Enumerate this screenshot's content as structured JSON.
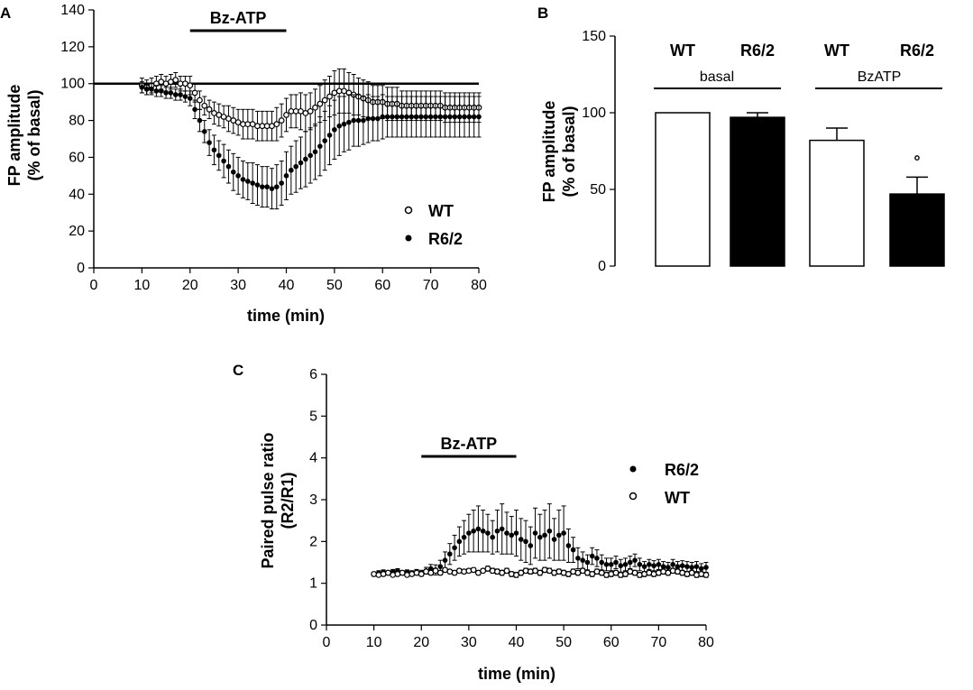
{
  "chart_data": [
    {
      "panel": "A",
      "type": "scatter",
      "xlabel": "time (min)",
      "ylabel_line1": "FP amplitude",
      "ylabel_line2": "(% of basal)",
      "xlim": [
        0,
        80
      ],
      "ylim": [
        0,
        140
      ],
      "x_ticks": [
        "0",
        "10",
        "20",
        "30",
        "40",
        "50",
        "60",
        "70",
        "80"
      ],
      "y_ticks": [
        "0",
        "20",
        "40",
        "60",
        "80",
        "100",
        "120",
        "140"
      ],
      "reference_line": 100,
      "annotation": {
        "label": "Bz-ATP",
        "from": 20,
        "to": 40
      },
      "legend": [
        {
          "name": "WT",
          "marker": "open"
        },
        {
          "name": "R6/2",
          "marker": "filled"
        }
      ],
      "series": [
        {
          "name": "WT",
          "marker": "open",
          "x": [
            10,
            11,
            12,
            13,
            14,
            15,
            16,
            17,
            18,
            19,
            20,
            21,
            22,
            23,
            24,
            25,
            26,
            27,
            28,
            29,
            30,
            31,
            32,
            33,
            34,
            35,
            36,
            37,
            38,
            39,
            40,
            41,
            42,
            43,
            44,
            45,
            46,
            47,
            48,
            49,
            50,
            51,
            52,
            53,
            54,
            55,
            56,
            57,
            58,
            59,
            60,
            61,
            62,
            63,
            64,
            65,
            66,
            67,
            68,
            69,
            70,
            71,
            72,
            73,
            74,
            75,
            76,
            77,
            78,
            79,
            80
          ],
          "y": [
            99,
            98,
            99,
            100,
            101,
            100,
            101,
            102,
            100,
            100,
            99,
            95,
            91,
            88,
            86,
            84,
            83,
            82,
            81,
            80,
            79,
            78,
            78,
            78,
            77,
            77,
            77,
            77,
            78,
            80,
            83,
            85,
            85,
            85,
            84,
            85,
            87,
            89,
            91,
            93,
            95,
            96,
            96,
            95,
            94,
            93,
            92,
            91,
            90,
            90,
            90,
            89,
            89,
            89,
            88,
            88,
            88,
            88,
            88,
            88,
            88,
            88,
            88,
            87,
            87,
            87,
            87,
            87,
            87,
            87,
            87
          ],
          "err": [
            4,
            4,
            4,
            4,
            4,
            4,
            4,
            4,
            4,
            4,
            5,
            5,
            5,
            5,
            5,
            6,
            6,
            6,
            7,
            7,
            7,
            8,
            8,
            8,
            8,
            8,
            8,
            8,
            9,
            9,
            9,
            9,
            9,
            10,
            10,
            10,
            10,
            10,
            11,
            11,
            12,
            12,
            12,
            11,
            11,
            10,
            10,
            10,
            9,
            9,
            9,
            9,
            9,
            9,
            8,
            8,
            8,
            8,
            8,
            8,
            8,
            8,
            8,
            8,
            8,
            8,
            8,
            8,
            8,
            8,
            8
          ]
        },
        {
          "name": "R6/2",
          "marker": "filled",
          "x": [
            10,
            11,
            12,
            13,
            14,
            15,
            16,
            17,
            18,
            19,
            20,
            21,
            22,
            23,
            24,
            25,
            26,
            27,
            28,
            29,
            30,
            31,
            32,
            33,
            34,
            35,
            36,
            37,
            38,
            39,
            40,
            41,
            42,
            43,
            44,
            45,
            46,
            47,
            48,
            49,
            50,
            51,
            52,
            53,
            54,
            55,
            56,
            57,
            58,
            59,
            60,
            61,
            62,
            63,
            64,
            65,
            66,
            67,
            68,
            69,
            70,
            71,
            72,
            73,
            74,
            75,
            76,
            77,
            78,
            79,
            80
          ],
          "y": [
            98,
            97,
            97,
            96,
            96,
            95,
            95,
            94,
            94,
            93,
            92,
            86,
            80,
            74,
            68,
            64,
            61,
            58,
            55,
            52,
            50,
            48,
            47,
            46,
            45,
            44,
            44,
            43,
            44,
            46,
            50,
            53,
            55,
            57,
            59,
            61,
            63,
            66,
            69,
            72,
            75,
            77,
            78,
            79,
            80,
            80,
            80,
            81,
            81,
            81,
            82,
            82,
            82,
            82,
            82,
            82,
            82,
            82,
            82,
            82,
            82,
            82,
            82,
            82,
            82,
            82,
            82,
            82,
            82,
            82,
            82
          ],
          "err": [
            3,
            3,
            3,
            3,
            3,
            3,
            3,
            3,
            3,
            3,
            4,
            5,
            6,
            6,
            7,
            8,
            8,
            9,
            9,
            10,
            10,
            10,
            10,
            11,
            11,
            11,
            11,
            11,
            12,
            12,
            13,
            13,
            14,
            14,
            15,
            15,
            15,
            16,
            16,
            16,
            16,
            16,
            15,
            15,
            14,
            14,
            13,
            13,
            12,
            12,
            12,
            11,
            11,
            11,
            11,
            11,
            11,
            11,
            11,
            11,
            11,
            11,
            11,
            11,
            11,
            11,
            11,
            11,
            11,
            11,
            11
          ]
        }
      ]
    },
    {
      "panel": "B",
      "type": "bar",
      "ylabel_line1": "FP amplitude",
      "ylabel_line2": "(% of basal)",
      "ylim": [
        0,
        150
      ],
      "y_ticks": [
        "0",
        "50",
        "100",
        "150"
      ],
      "categories": [
        "WT",
        "R6/2",
        "WT",
        "R6/2"
      ],
      "groups": [
        {
          "label": "basal",
          "indices": [
            0,
            1
          ]
        },
        {
          "label": "BzATP",
          "indices": [
            2,
            3
          ]
        }
      ],
      "bar_fill": [
        "open",
        "filled",
        "open",
        "filled"
      ],
      "values": [
        100,
        97,
        82,
        47
      ],
      "errors": [
        0,
        3,
        8,
        11
      ],
      "significance": {
        "index": 3,
        "marker": "°"
      }
    },
    {
      "panel": "C",
      "type": "scatter",
      "xlabel": "time (min)",
      "ylabel_line1": "Paired pulse ratio",
      "ylabel_line2": "(R2/R1)",
      "xlim": [
        0,
        80
      ],
      "ylim": [
        0,
        6
      ],
      "x_ticks": [
        "0",
        "10",
        "20",
        "30",
        "40",
        "50",
        "60",
        "70",
        "80"
      ],
      "y_ticks": [
        "0",
        "1",
        "2",
        "3",
        "4",
        "5",
        "6"
      ],
      "annotation": {
        "label": "Bz-ATP",
        "from": 20,
        "to": 40
      },
      "legend": [
        {
          "name": "R6/2",
          "marker": "filled"
        },
        {
          "name": "WT",
          "marker": "open"
        }
      ],
      "series": [
        {
          "name": "R6/2",
          "marker": "filled",
          "x": [
            10,
            11,
            12,
            13,
            14,
            15,
            16,
            17,
            18,
            19,
            20,
            21,
            22,
            23,
            24,
            25,
            26,
            27,
            28,
            29,
            30,
            31,
            32,
            33,
            34,
            35,
            36,
            37,
            38,
            39,
            40,
            41,
            42,
            43,
            44,
            45,
            46,
            47,
            48,
            49,
            50,
            51,
            52,
            53,
            54,
            55,
            56,
            57,
            58,
            59,
            60,
            61,
            62,
            63,
            64,
            65,
            66,
            67,
            68,
            69,
            70,
            71,
            72,
            73,
            74,
            75,
            76,
            77,
            78,
            79,
            80
          ],
          "y": [
            1.22,
            1.25,
            1.27,
            1.25,
            1.28,
            1.3,
            1.25,
            1.27,
            1.25,
            1.28,
            1.25,
            1.3,
            1.35,
            1.32,
            1.4,
            1.55,
            1.7,
            1.85,
            2.0,
            2.1,
            2.2,
            2.25,
            2.3,
            2.25,
            2.2,
            2.1,
            2.25,
            2.3,
            2.2,
            2.15,
            2.2,
            2.05,
            2.0,
            1.9,
            2.2,
            2.1,
            2.15,
            2.25,
            2.05,
            2.15,
            2.2,
            1.9,
            1.8,
            1.6,
            1.55,
            1.5,
            1.65,
            1.6,
            1.5,
            1.45,
            1.45,
            1.5,
            1.42,
            1.45,
            1.5,
            1.55,
            1.45,
            1.4,
            1.45,
            1.42,
            1.45,
            1.4,
            1.38,
            1.45,
            1.4,
            1.42,
            1.4,
            1.38,
            1.4,
            1.35,
            1.38
          ],
          "err": [
            0.05,
            0.05,
            0.05,
            0.05,
            0.05,
            0.05,
            0.05,
            0.05,
            0.05,
            0.05,
            0.06,
            0.08,
            0.1,
            0.12,
            0.15,
            0.2,
            0.25,
            0.3,
            0.35,
            0.4,
            0.45,
            0.5,
            0.55,
            0.5,
            0.45,
            0.4,
            0.5,
            0.6,
            0.5,
            0.45,
            0.55,
            0.5,
            0.5,
            0.45,
            0.6,
            0.55,
            0.6,
            0.65,
            0.5,
            0.6,
            0.65,
            0.4,
            0.3,
            0.25,
            0.2,
            0.18,
            0.2,
            0.2,
            0.18,
            0.15,
            0.15,
            0.15,
            0.15,
            0.15,
            0.15,
            0.15,
            0.15,
            0.12,
            0.12,
            0.12,
            0.12,
            0.12,
            0.12,
            0.12,
            0.12,
            0.12,
            0.12,
            0.12,
            0.12,
            0.12,
            0.12
          ]
        },
        {
          "name": "WT",
          "marker": "open",
          "x": [
            10,
            11,
            12,
            13,
            14,
            15,
            16,
            17,
            18,
            19,
            20,
            21,
            22,
            23,
            24,
            25,
            26,
            27,
            28,
            29,
            30,
            31,
            32,
            33,
            34,
            35,
            36,
            37,
            38,
            39,
            40,
            41,
            42,
            43,
            44,
            45,
            46,
            47,
            48,
            49,
            50,
            51,
            52,
            53,
            54,
            55,
            56,
            57,
            58,
            59,
            60,
            61,
            62,
            63,
            64,
            65,
            66,
            67,
            68,
            69,
            70,
            71,
            72,
            73,
            74,
            75,
            76,
            77,
            78,
            79,
            80
          ],
          "y": [
            1.22,
            1.2,
            1.22,
            1.25,
            1.2,
            1.22,
            1.25,
            1.2,
            1.22,
            1.25,
            1.22,
            1.28,
            1.25,
            1.3,
            1.25,
            1.32,
            1.28,
            1.25,
            1.3,
            1.28,
            1.3,
            1.32,
            1.25,
            1.3,
            1.35,
            1.3,
            1.28,
            1.25,
            1.3,
            1.22,
            1.2,
            1.25,
            1.3,
            1.28,
            1.3,
            1.25,
            1.32,
            1.3,
            1.25,
            1.28,
            1.25,
            1.22,
            1.28,
            1.25,
            1.3,
            1.25,
            1.22,
            1.28,
            1.25,
            1.2,
            1.22,
            1.25,
            1.2,
            1.22,
            1.28,
            1.25,
            1.2,
            1.22,
            1.25,
            1.22,
            1.25,
            1.28,
            1.25,
            1.3,
            1.28,
            1.25,
            1.22,
            1.25,
            1.2,
            1.22,
            1.2
          ],
          "err": [
            0.04,
            0.04,
            0.04,
            0.04,
            0.04,
            0.04,
            0.04,
            0.04,
            0.04,
            0.04,
            0.05,
            0.05,
            0.05,
            0.05,
            0.05,
            0.05,
            0.05,
            0.05,
            0.05,
            0.05,
            0.05,
            0.05,
            0.05,
            0.05,
            0.06,
            0.06,
            0.06,
            0.06,
            0.06,
            0.06,
            0.06,
            0.06,
            0.06,
            0.06,
            0.06,
            0.06,
            0.06,
            0.06,
            0.06,
            0.06,
            0.06,
            0.06,
            0.06,
            0.06,
            0.06,
            0.06,
            0.06,
            0.06,
            0.06,
            0.06,
            0.06,
            0.06,
            0.06,
            0.06,
            0.06,
            0.06,
            0.06,
            0.06,
            0.06,
            0.06,
            0.06,
            0.06,
            0.06,
            0.06,
            0.06,
            0.06,
            0.06,
            0.06,
            0.06,
            0.06,
            0.06
          ]
        }
      ]
    }
  ]
}
